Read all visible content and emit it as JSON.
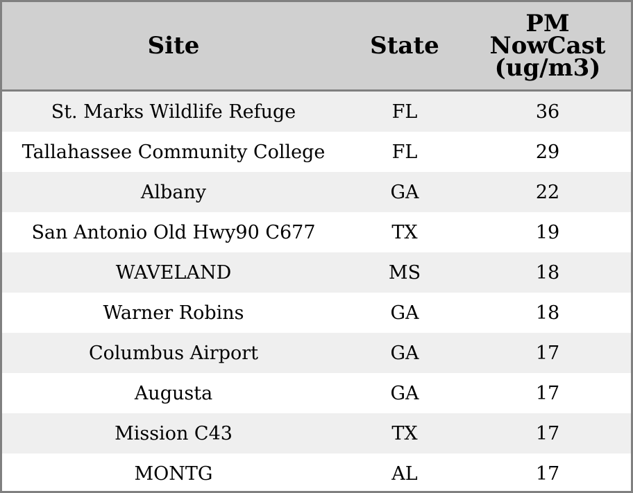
{
  "table": {
    "headers": {
      "site": "Site",
      "state": "State",
      "pm_line1": "PM",
      "pm_line2": "NowCast",
      "pm_line3": "(ug/m3)"
    },
    "rows": [
      {
        "site": "St. Marks Wildlife Refuge",
        "state": "FL",
        "pm": "36"
      },
      {
        "site": "Tallahassee Community College",
        "state": "FL",
        "pm": "29"
      },
      {
        "site": "Albany",
        "state": "GA",
        "pm": "22"
      },
      {
        "site": "San Antonio Old Hwy90 C677",
        "state": "TX",
        "pm": "19"
      },
      {
        "site": "WAVELAND",
        "state": "MS",
        "pm": "18"
      },
      {
        "site": "Warner Robins",
        "state": "GA",
        "pm": "18"
      },
      {
        "site": "Columbus Airport",
        "state": "GA",
        "pm": "17"
      },
      {
        "site": "Augusta",
        "state": "GA",
        "pm": "17"
      },
      {
        "site": "Mission C43",
        "state": "TX",
        "pm": "17"
      },
      {
        "site": "MONTG",
        "state": "AL",
        "pm": "17"
      }
    ]
  }
}
